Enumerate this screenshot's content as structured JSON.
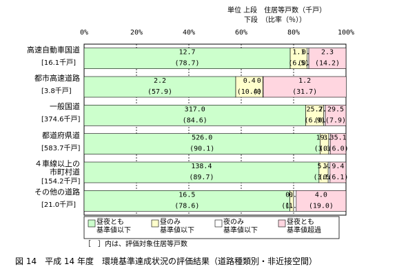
{
  "chart_data": {
    "type": "stacked-bar-horizontal",
    "unit_note": [
      "単位 上段　住居等戸数（千戸）",
      "下段　（比率（％））"
    ],
    "categories": [
      "高速自動車国道",
      "都市高速道路",
      "一般国道",
      "都道府県道",
      "４車線以上の\n市町村道",
      "その他の道路"
    ],
    "category_totals": [
      "[16.1千戸]",
      "[3.8千戸]",
      "[374.6千戸]",
      "[583.7千戸]",
      "[154.2千戸]",
      "[21.0千戸]"
    ],
    "series": [
      {
        "name": "昼夜とも\n基準値以下",
        "color": "#ccffcc",
        "values": [
          78.7,
          57.9,
          84.6,
          90.1,
          89.7,
          78.6
        ],
        "value_labels": [
          "(78.7)",
          "(57.9)",
          "(84.6)",
          "(90.1)",
          "(89.7)",
          "(78.6)"
        ],
        "count_labels": [
          "12.7",
          "2.2",
          "317.0",
          "526.0",
          "138.4",
          "16.5"
        ]
      },
      {
        "name": "昼のみ\n基準値以下",
        "color": "#ffffcc",
        "values": [
          6.5,
          10.4,
          6.9,
          3.3,
          3.5,
          1.4
        ],
        "value_labels": [
          "(6.5)",
          "(10.4)",
          "(6.9)",
          "(3.3)",
          "(3.5)",
          "(1.4)"
        ],
        "count_labels": [
          "1.1",
          "0.4",
          "25.7",
          "19.3",
          "5.4",
          "0.3"
        ]
      },
      {
        "name": "夜のみ\n基準値以下",
        "color": "#ffffff",
        "values": [
          0.6,
          0.1,
          0.6,
          0.6,
          0.7,
          1.0
        ],
        "value_labels": [
          "(0.6)",
          "(0.1)",
          "(0.6)",
          "(0.6)",
          "(0.7)",
          "(1.0)"
        ],
        "count_labels": [
          "0.1",
          "0.0",
          "2.3",
          "3.3",
          "1.0",
          "0.2"
        ]
      },
      {
        "name": "昼夜とも\n基準値超過",
        "color": "#ffd6e0",
        "values": [
          14.2,
          31.7,
          7.9,
          6.0,
          6.1,
          19.0
        ],
        "value_labels": [
          "(14.2)",
          "(31.7)",
          "(7.9)",
          "(6.0)",
          "(6.1)",
          "(19.0)"
        ],
        "count_labels": [
          "2.3",
          "1.2",
          "29.5",
          "35.1",
          "9.4",
          "4.0"
        ]
      }
    ],
    "xlim": [
      0,
      100
    ],
    "xticks": [
      {
        "value": 0,
        "label": "0%"
      },
      {
        "value": 20,
        "label": "20%"
      },
      {
        "value": 40,
        "label": "40%"
      },
      {
        "value": 60,
        "label": "60%"
      },
      {
        "value": 80,
        "label": "80%"
      },
      {
        "value": 100,
        "label": "100%"
      }
    ],
    "grid": true,
    "note": "［　］内は、評価対象住居等戸数",
    "caption": "図 14　平成 14 年度　環境基準達成状況の評価結果（道路種類別・非近接空間）"
  }
}
